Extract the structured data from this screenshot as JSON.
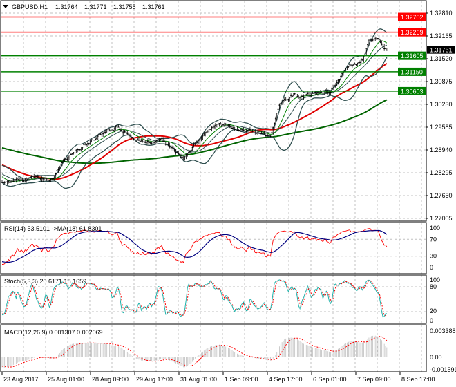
{
  "header": {
    "menu_icon": "triangle-down-icon",
    "symbol": "GBPUSD,H1",
    "open": "1.31764",
    "high": "1.31771",
    "low": "1.31755",
    "close": "1.31761"
  },
  "price_axis": {
    "ticks": [
      "1.32810",
      "1.32165",
      "1.31520",
      "1.30875",
      "1.30230",
      "1.29585",
      "1.28940",
      "1.28295",
      "1.27650",
      "1.27005"
    ],
    "current_price": "1.31761"
  },
  "levels": [
    {
      "price": "1.32702",
      "color": "#ff0000"
    },
    {
      "price": "1.32269",
      "color": "#ff0000"
    },
    {
      "price": "1.31605",
      "color": "#008000"
    },
    {
      "price": "1.31150",
      "color": "#008000"
    },
    {
      "price": "1.30603",
      "color": "#008000"
    }
  ],
  "rsi": {
    "label": "RSI(14) 53.5101  ->MA(18) 61.8301",
    "ticks": [
      "100",
      "70",
      "30",
      "0"
    ]
  },
  "stoch": {
    "label": "Stoch(5,3,3) 20.6171 18.1659",
    "ticks": [
      "100",
      "80",
      "20",
      "0"
    ]
  },
  "macd": {
    "label": "MACD(12,26,9) 0.001307 0.002069",
    "ticks": [
      "0.003388",
      "0.00",
      "-0.001591"
    ]
  },
  "time_axis": [
    "23 Aug 2017",
    "25 Aug 01:00",
    "28 Aug 09:00",
    "29 Aug 17:00",
    "31 Aug 01:00",
    "1 Sep 09:00",
    "4 Sep 17:00",
    "6 Sep 01:00",
    "7 Sep 09:00",
    "8 Sep 17:00"
  ],
  "colors": {
    "bull": "#000000",
    "bear": "#000000",
    "level_red": "#ff0000",
    "level_green": "#008000",
    "ma_fast": "#008000",
    "ma_mid": "#e00000",
    "ma_slow": "#006400",
    "bands": "#2f4f4f",
    "rsi": "#ff0000",
    "rsi_ma": "#000080",
    "stoch_main": "#20b2aa",
    "stoch_signal": "#ff0000",
    "macd_hist": "#c0c0c0",
    "macd_signal": "#ff0000"
  },
  "chart_data": {
    "type": "candlestick",
    "symbol": "GBPUSD",
    "timeframe": "H1",
    "ylim": [
      1.27005,
      1.331
    ],
    "close_keypoints": [
      [
        -200,
        1.296
      ],
      [
        -100,
        1.293
      ],
      [
        -40,
        1.288
      ],
      [
        0,
        1.28
      ],
      [
        20,
        1.2814
      ],
      [
        40,
        1.281
      ],
      [
        50,
        1.2869
      ],
      [
        65,
        1.2917
      ],
      [
        90,
        1.2957
      ],
      [
        105,
        1.2917
      ],
      [
        125,
        1.2917
      ],
      [
        142,
        1.2865
      ],
      [
        150,
        1.2908
      ],
      [
        167,
        1.297
      ],
      [
        190,
        1.2947
      ],
      [
        210,
        1.2927
      ],
      [
        217,
        1.3015
      ],
      [
        230,
        1.3045
      ],
      [
        245,
        1.3054
      ],
      [
        257,
        1.3064
      ],
      [
        270,
        1.3123
      ],
      [
        282,
        1.3152
      ],
      [
        287,
        1.3211
      ],
      [
        295,
        1.3201
      ],
      [
        301,
        1.31761
      ]
    ]
  }
}
